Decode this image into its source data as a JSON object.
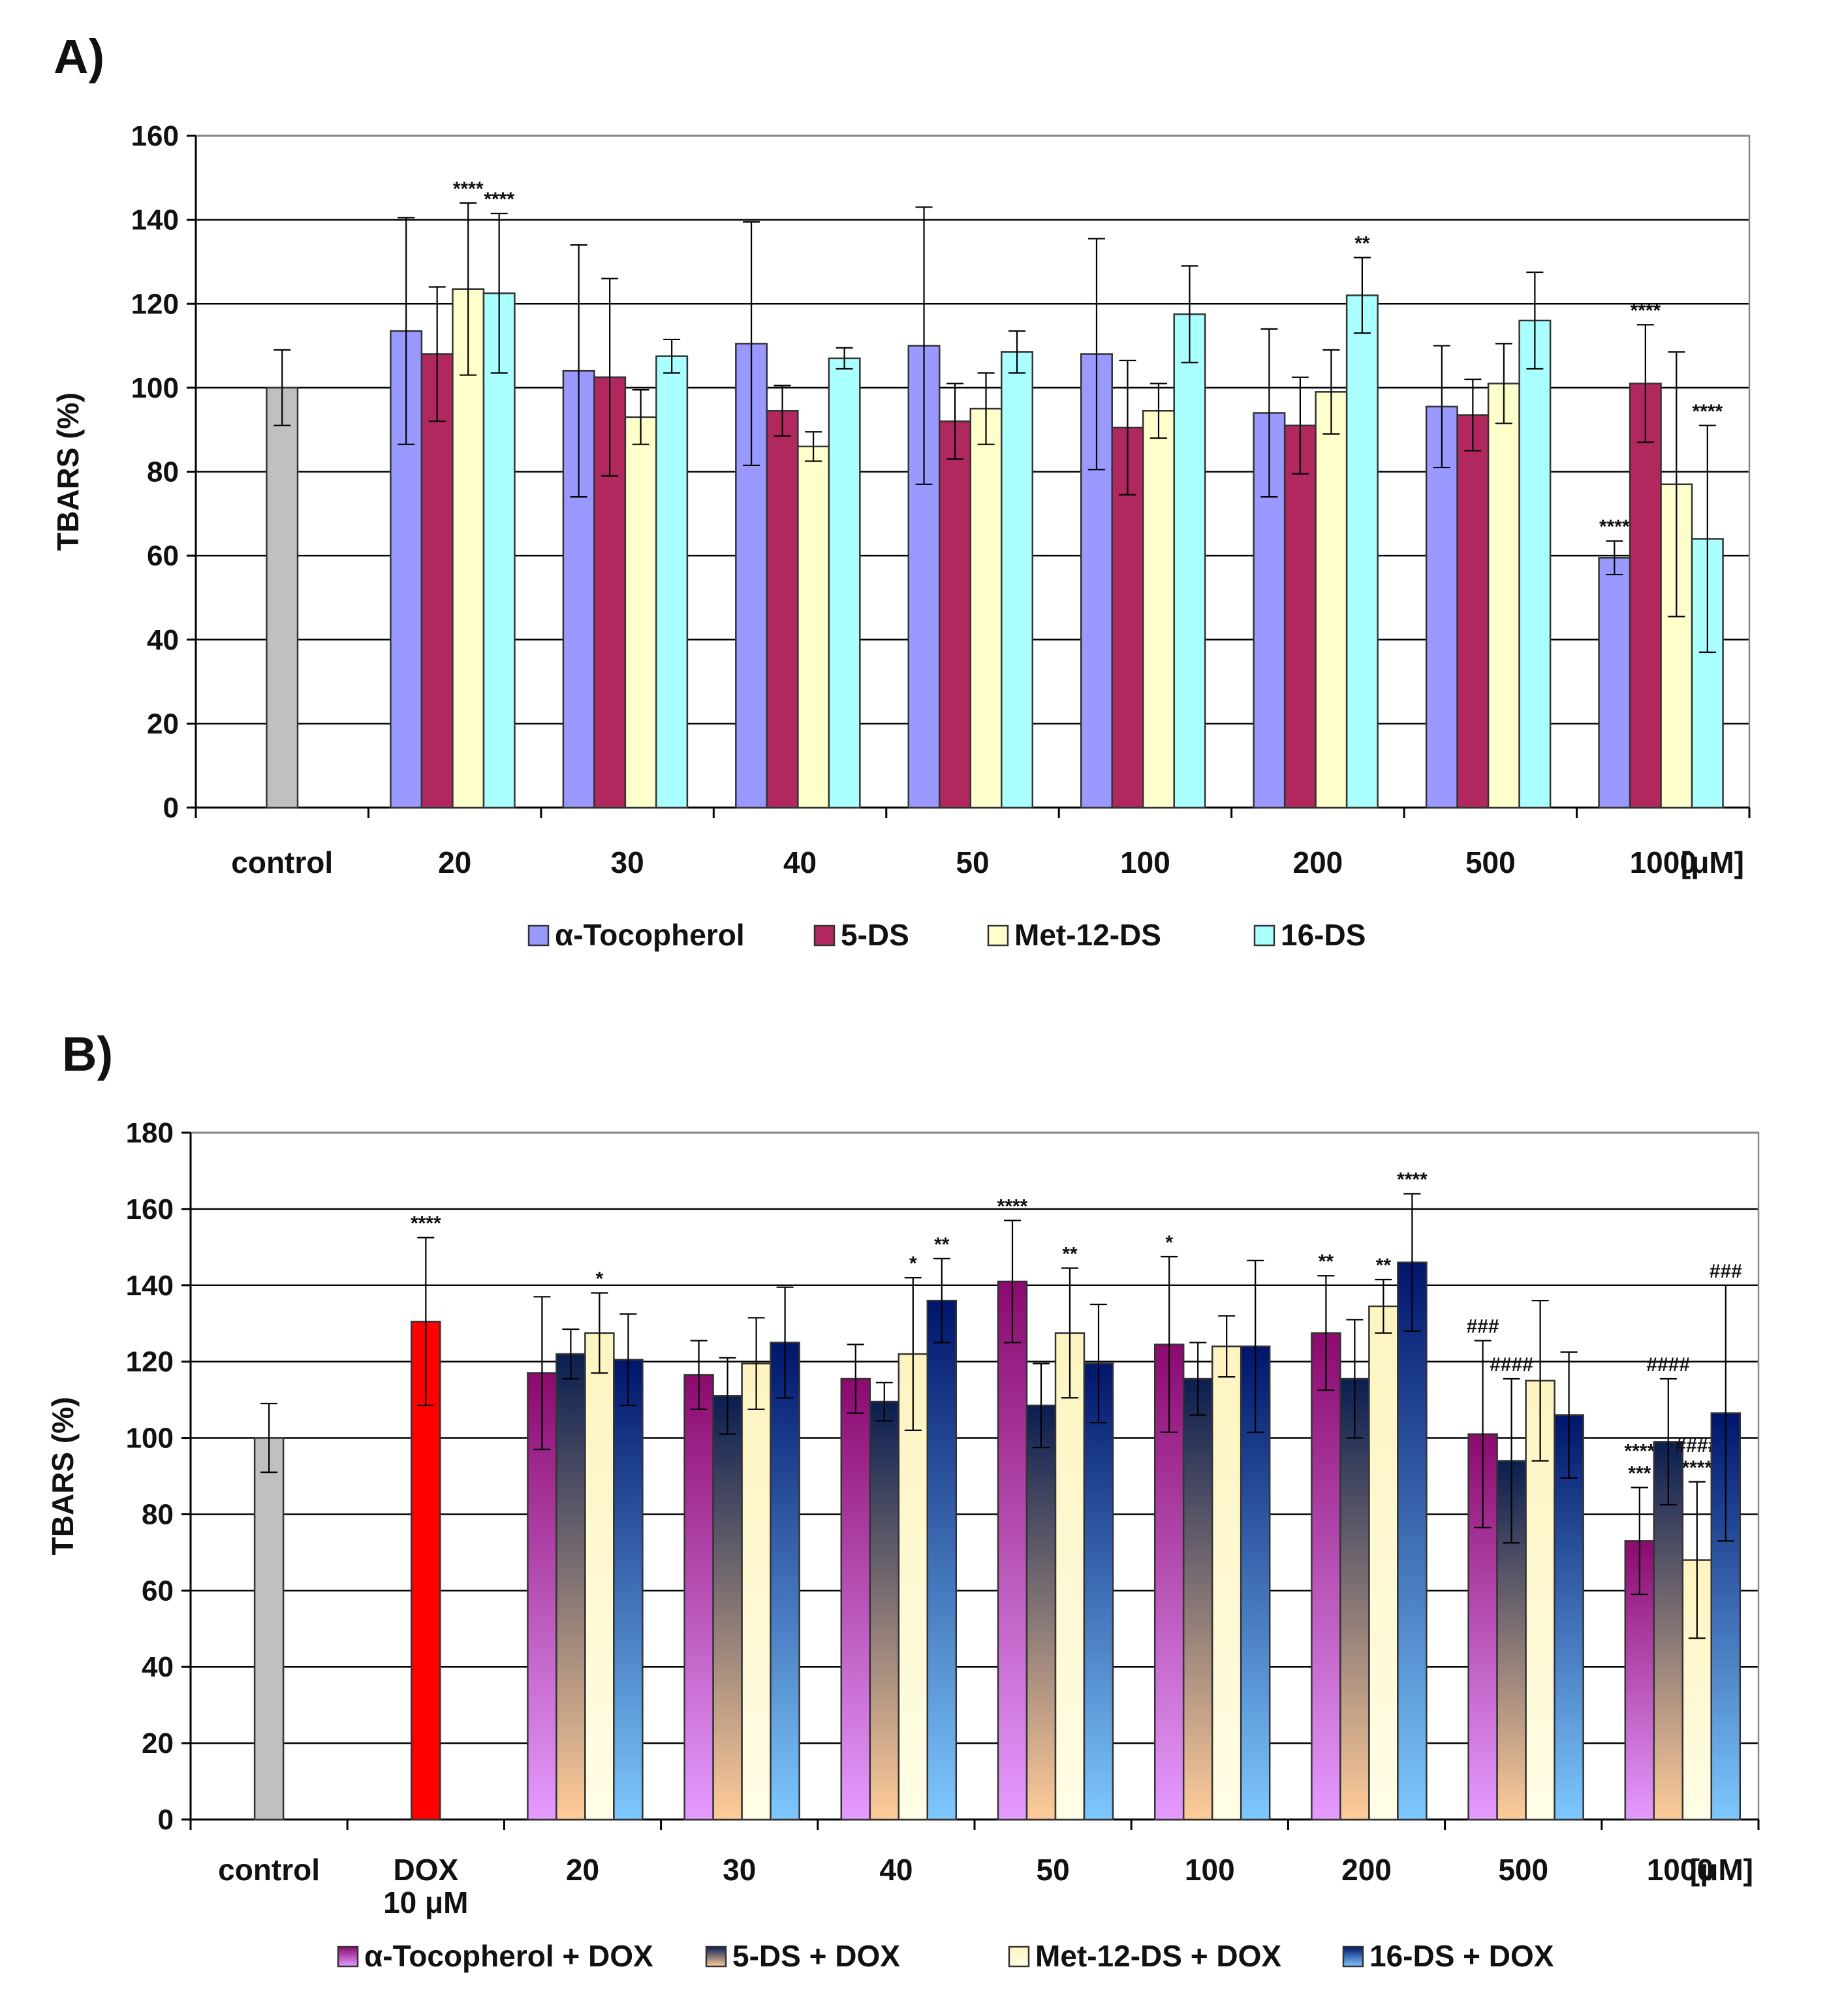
{
  "chart_data": [
    {
      "panel": "A)",
      "type": "bar",
      "ylabel": "TBARS (%)",
      "ylim": [
        0,
        160
      ],
      "yticks": [
        0,
        20,
        40,
        60,
        80,
        100,
        120,
        140,
        160
      ],
      "grid": true,
      "unit": "[μM]",
      "categories": [
        "control",
        "20",
        "30",
        "40",
        "50",
        "100",
        "200",
        "500",
        "1000"
      ],
      "control": {
        "name": "control",
        "color": "#c0c0c0",
        "value": 100,
        "err": 9
      },
      "series": [
        {
          "name": "α-Tocopherol",
          "color": "#9999ff",
          "values": [
            null,
            113.5,
            104,
            110.5,
            110,
            108,
            94,
            95.5,
            59.5
          ],
          "errors": [
            null,
            27,
            30,
            29,
            33,
            27.5,
            20,
            14.5,
            4
          ],
          "annotations": [
            null,
            "",
            "",
            "",
            "",
            "",
            "",
            "",
            "****"
          ]
        },
        {
          "name": "5-DS",
          "color": "#b0285e",
          "values": [
            null,
            108,
            102.5,
            94.5,
            92,
            90.5,
            91,
            93.5,
            101
          ],
          "errors": [
            null,
            16,
            23.5,
            6,
            9,
            16,
            11.5,
            8.5,
            14
          ],
          "annotations": [
            null,
            "",
            "",
            "",
            "",
            "",
            "",
            "",
            "****"
          ]
        },
        {
          "name": "Met-12-DS",
          "color": "#ffffcc",
          "values": [
            null,
            123.5,
            93,
            86,
            95,
            94.5,
            99,
            101,
            77
          ],
          "errors": [
            null,
            20.5,
            6.5,
            3.5,
            8.5,
            6.5,
            10,
            9.5,
            31.5
          ],
          "annotations": [
            null,
            "****",
            "",
            "",
            "",
            "",
            "",
            "",
            ""
          ]
        },
        {
          "name": "16-DS",
          "color": "#aaffff",
          "values": [
            null,
            122.5,
            107.5,
            107,
            108.5,
            117.5,
            122,
            116,
            64
          ],
          "errors": [
            null,
            19,
            4,
            2.5,
            5,
            11.5,
            9,
            11.5,
            27
          ],
          "annotations": [
            null,
            "****",
            "",
            "",
            "",
            "",
            "**",
            "",
            "****"
          ]
        }
      ]
    },
    {
      "panel": "B)",
      "type": "bar",
      "ylabel": "TBARS (%)",
      "ylim": [
        0,
        180
      ],
      "yticks": [
        0,
        20,
        40,
        60,
        80,
        100,
        120,
        140,
        160,
        180
      ],
      "grid": true,
      "unit": "[μM]",
      "categories": [
        "control",
        "DOX",
        "20",
        "30",
        "40",
        "50",
        "100",
        "200",
        "500",
        "1000"
      ],
      "dox_sublabel": "10 μM",
      "control": {
        "name": "control",
        "color": "#c0c0c0",
        "value": 100,
        "err": 9
      },
      "dox": {
        "name": "DOX 10 μM",
        "color": "#ff0000",
        "value": 130.5,
        "err": 22,
        "annotation": "****"
      },
      "series": [
        {
          "name": "α-Tocopherol + DOX",
          "gradient": [
            "#8b0a6e",
            "#e59bff"
          ],
          "values": [
            null,
            null,
            117,
            116.5,
            115.5,
            141,
            124.5,
            127.5,
            101,
            73
          ],
          "errors": [
            null,
            null,
            20,
            9,
            9,
            16,
            23,
            15,
            24.5,
            14
          ],
          "annotations": [
            null,
            null,
            "",
            "",
            "",
            "****",
            "*",
            "**",
            "###",
            "****\n***"
          ]
        },
        {
          "name": "5-DS + DOX",
          "gradient": [
            "#0a1e50",
            "#ffcc99"
          ],
          "values": [
            null,
            null,
            122,
            111,
            109.5,
            108.5,
            115.5,
            115.5,
            94,
            99
          ],
          "errors": [
            null,
            null,
            6.5,
            10,
            5,
            11,
            9.5,
            15.5,
            21.5,
            16.5
          ],
          "annotations": [
            null,
            null,
            "",
            "",
            "",
            "",
            "",
            "",
            "####",
            "####"
          ]
        },
        {
          "name": "Met-12-DS + DOX",
          "gradient": [
            "#fdf4c0",
            "#fffde6"
          ],
          "values": [
            null,
            null,
            127.5,
            119.5,
            122,
            127.5,
            124,
            134.5,
            115,
            68
          ],
          "errors": [
            null,
            null,
            10.5,
            12,
            20,
            17,
            8,
            7,
            21,
            20.5
          ],
          "annotations": [
            null,
            null,
            "*",
            "",
            "*",
            "**",
            "",
            "**",
            "",
            "####\n****"
          ]
        },
        {
          "name": "16-DS + DOX",
          "gradient": [
            "#00156b",
            "#7ec8ff"
          ],
          "values": [
            null,
            null,
            120.5,
            125,
            136,
            119.5,
            124,
            146,
            106,
            106.5
          ],
          "errors": [
            null,
            null,
            12,
            14.5,
            11,
            15.5,
            22.5,
            18,
            16.5,
            33.5
          ],
          "annotations": [
            null,
            null,
            "",
            "",
            "**",
            "",
            "",
            "****",
            "",
            "###"
          ]
        }
      ]
    }
  ]
}
